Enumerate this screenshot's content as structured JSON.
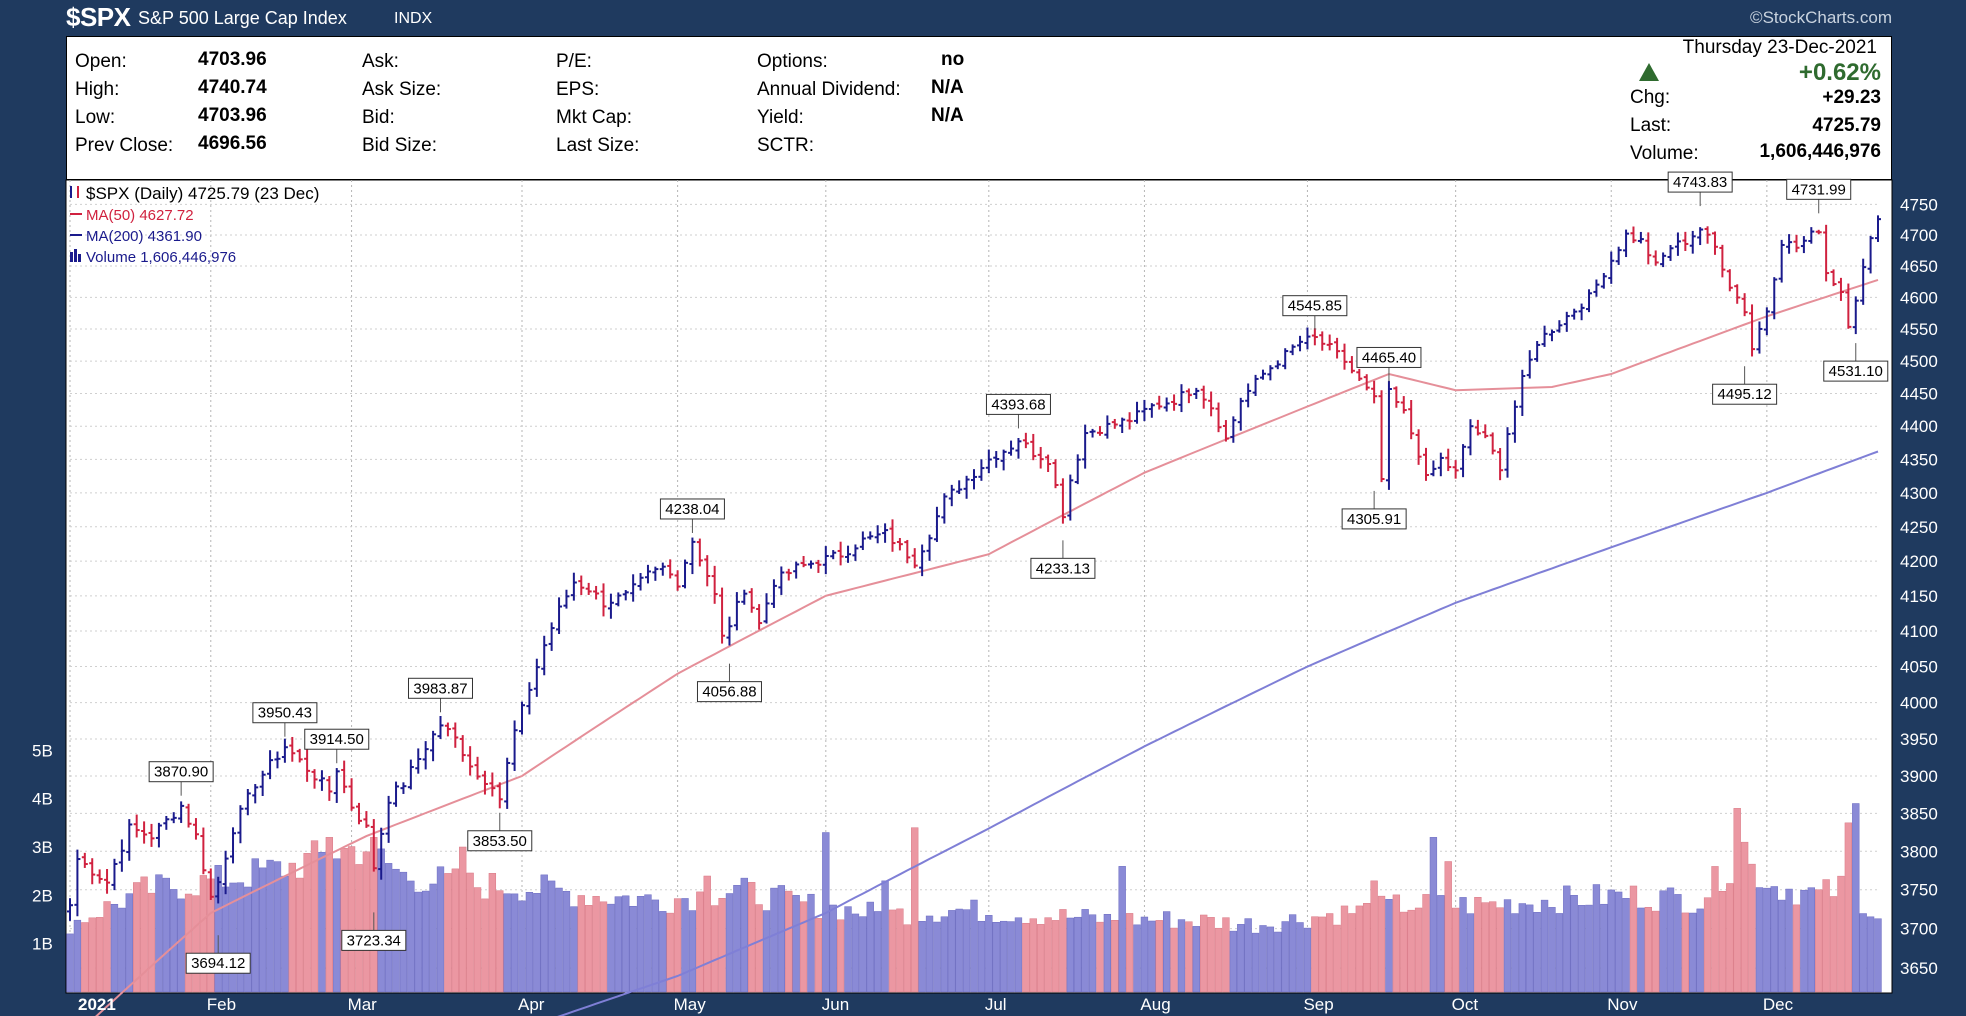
{
  "header": {
    "ticker": "$SPX",
    "name": "S&P 500 Large Cap Index",
    "type": "INDX",
    "copyright": "©StockCharts.com"
  },
  "quote": {
    "date": "Thursday  23-Dec-2021",
    "change_pct": "+0.62%",
    "open_label": "Open:",
    "open": "4703.96",
    "high_label": "High:",
    "high": "4740.74",
    "low_label": "Low:",
    "low": "4703.96",
    "prev_close_label": "Prev Close:",
    "prev_close": "4696.56",
    "ask_label": "Ask:",
    "ask_size_label": "Ask Size:",
    "bid_label": "Bid:",
    "bid_size_label": "Bid Size:",
    "pe_label": "P/E:",
    "eps_label": "EPS:",
    "mkt_cap_label": "Mkt Cap:",
    "last_size_label": "Last Size:",
    "options_label": "Options:",
    "options": "no",
    "annual_dividend_label": "Annual Dividend:",
    "annual_dividend": "N/A",
    "yield_label": "Yield:",
    "yield": "N/A",
    "sctr_label": "SCTR:",
    "chg_label": "Chg:",
    "chg": "+29.23",
    "last_label": "Last:",
    "last": "4725.79",
    "volume_label": "Volume:",
    "volume": "1,606,446,976"
  },
  "colors": {
    "up": "#1a1a8c",
    "down": "#d0213f",
    "ma50": "#e58f99",
    "ma200": "#7f7fd6",
    "vol_up": "#8a8ad6",
    "vol_down": "#eb97a2",
    "frame": "#1f3a5f",
    "arrow_up": "#2f6b2f"
  },
  "chart_data": {
    "type": "ohlc",
    "legend": {
      "main": "$SPX (Daily) 4725.79 (23 Dec)",
      "ma50": "MA(50) 4627.72",
      "ma200": "MA(200) 4361.90",
      "volume": "Volume 1,606,446,976"
    },
    "months": [
      "2021",
      "Feb",
      "Mar",
      "Apr",
      "May",
      "Jun",
      "Jul",
      "Aug",
      "Sep",
      "Oct",
      "Nov",
      "Dec"
    ],
    "x_month_starts": [
      0,
      19,
      38,
      61,
      82,
      102,
      124,
      145,
      167,
      187,
      208,
      229
    ],
    "price_ticks": [
      3650,
      3700,
      3750,
      3800,
      3850,
      3900,
      3950,
      4000,
      4050,
      4100,
      4150,
      4200,
      4250,
      4300,
      4350,
      4400,
      4450,
      4500,
      4550,
      4600,
      4650,
      4700,
      4750
    ],
    "price_axis": "log",
    "price_range": [
      3620,
      4790
    ],
    "volume_ticks": [
      "1B",
      "2B",
      "3B",
      "4B",
      "5B"
    ],
    "volume_range_billions": [
      0,
      6
    ],
    "annotations": [
      {
        "i": 15,
        "value": "3870.90",
        "pos": "above"
      },
      {
        "i": 20,
        "value": "3694.12",
        "pos": "below"
      },
      {
        "i": 29,
        "value": "3950.43",
        "pos": "above"
      },
      {
        "i": 36,
        "value": "3914.50",
        "pos": "above"
      },
      {
        "i": 41,
        "value": "3723.34",
        "pos": "below"
      },
      {
        "i": 50,
        "value": "3983.87",
        "pos": "above"
      },
      {
        "i": 58,
        "value": "3853.50",
        "pos": "below"
      },
      {
        "i": 84,
        "value": "4238.04",
        "pos": "above"
      },
      {
        "i": 89,
        "value": "4056.88",
        "pos": "below"
      },
      {
        "i": 128,
        "value": "4393.68",
        "pos": "above"
      },
      {
        "i": 134,
        "value": "4233.13",
        "pos": "below"
      },
      {
        "i": 168,
        "value": "4545.85",
        "pos": "above"
      },
      {
        "i": 178,
        "value": "4465.40",
        "pos": "above"
      },
      {
        "i": 176,
        "value": "4305.91",
        "pos": "below"
      },
      {
        "i": 220,
        "value": "4743.83",
        "pos": "above"
      },
      {
        "i": 226,
        "value": "4495.12",
        "pos": "below"
      },
      {
        "i": 236,
        "value": "4731.99",
        "pos": "above"
      },
      {
        "i": 241,
        "value": "4531.10",
        "pos": "below"
      }
    ],
    "close_anchors": [
      [
        0,
        3730
      ],
      [
        1,
        3790
      ],
      [
        5,
        3760
      ],
      [
        8,
        3830
      ],
      [
        11,
        3820
      ],
      [
        13,
        3840
      ],
      [
        15,
        3860
      ],
      [
        17,
        3820
      ],
      [
        19,
        3740
      ],
      [
        20,
        3760
      ],
      [
        22,
        3830
      ],
      [
        25,
        3890
      ],
      [
        29,
        3940
      ],
      [
        32,
        3910
      ],
      [
        35,
        3880
      ],
      [
        36,
        3910
      ],
      [
        38,
        3860
      ],
      [
        40,
        3830
      ],
      [
        41,
        3780
      ],
      [
        43,
        3870
      ],
      [
        45,
        3890
      ],
      [
        48,
        3940
      ],
      [
        50,
        3970
      ],
      [
        52,
        3950
      ],
      [
        55,
        3900
      ],
      [
        57,
        3890
      ],
      [
        58,
        3870
      ],
      [
        60,
        3960
      ],
      [
        62,
        4020
      ],
      [
        64,
        4080
      ],
      [
        66,
        4130
      ],
      [
        68,
        4170
      ],
      [
        70,
        4160
      ],
      [
        72,
        4140
      ],
      [
        75,
        4150
      ],
      [
        78,
        4180
      ],
      [
        80,
        4190
      ],
      [
        82,
        4170
      ],
      [
        84,
        4230
      ],
      [
        86,
        4180
      ],
      [
        87,
        4150
      ],
      [
        88,
        4090
      ],
      [
        89,
        4110
      ],
      [
        91,
        4160
      ],
      [
        93,
        4110
      ],
      [
        95,
        4170
      ],
      [
        98,
        4190
      ],
      [
        101,
        4200
      ],
      [
        104,
        4210
      ],
      [
        107,
        4230
      ],
      [
        110,
        4240
      ],
      [
        112,
        4220
      ],
      [
        114,
        4200
      ],
      [
        116,
        4240
      ],
      [
        118,
        4290
      ],
      [
        121,
        4320
      ],
      [
        124,
        4350
      ],
      [
        127,
        4370
      ],
      [
        128,
        4380
      ],
      [
        130,
        4360
      ],
      [
        132,
        4350
      ],
      [
        134,
        4270
      ],
      [
        135,
        4320
      ],
      [
        137,
        4390
      ],
      [
        140,
        4400
      ],
      [
        143,
        4410
      ],
      [
        146,
        4430
      ],
      [
        149,
        4440
      ],
      [
        152,
        4460
      ],
      [
        154,
        4430
      ],
      [
        156,
        4380
      ],
      [
        158,
        4440
      ],
      [
        161,
        4480
      ],
      [
        164,
        4510
      ],
      [
        166,
        4530
      ],
      [
        168,
        4535
      ],
      [
        170,
        4520
      ],
      [
        172,
        4500
      ],
      [
        174,
        4470
      ],
      [
        176,
        4440
      ],
      [
        177,
        4320
      ],
      [
        178,
        4450
      ],
      [
        180,
        4420
      ],
      [
        182,
        4360
      ],
      [
        183,
        4320
      ],
      [
        185,
        4350
      ],
      [
        187,
        4330
      ],
      [
        189,
        4400
      ],
      [
        191,
        4380
      ],
      [
        193,
        4340
      ],
      [
        194,
        4390
      ],
      [
        196,
        4470
      ],
      [
        198,
        4530
      ],
      [
        200,
        4550
      ],
      [
        202,
        4570
      ],
      [
        205,
        4600
      ],
      [
        207,
        4640
      ],
      [
        210,
        4700
      ],
      [
        212,
        4690
      ],
      [
        214,
        4650
      ],
      [
        216,
        4680
      ],
      [
        218,
        4690
      ],
      [
        220,
        4710
      ],
      [
        222,
        4680
      ],
      [
        224,
        4620
      ],
      [
        226,
        4580
      ],
      [
        227,
        4520
      ],
      [
        229,
        4580
      ],
      [
        231,
        4690
      ],
      [
        233,
        4680
      ],
      [
        235,
        4700
      ],
      [
        236,
        4710
      ],
      [
        237,
        4640
      ],
      [
        239,
        4610
      ],
      [
        240,
        4560
      ],
      [
        241,
        4600
      ],
      [
        243,
        4690
      ],
      [
        244,
        4725.79
      ]
    ],
    "volume_anchors_billions": [
      [
        0,
        1.4
      ],
      [
        10,
        2.1
      ],
      [
        20,
        2.3
      ],
      [
        30,
        2.6
      ],
      [
        36,
        2.9
      ],
      [
        40,
        3.0
      ],
      [
        45,
        2.4
      ],
      [
        55,
        2.2
      ],
      [
        60,
        2.2
      ],
      [
        70,
        2.0
      ],
      [
        80,
        1.9
      ],
      [
        90,
        2.1
      ],
      [
        100,
        1.8
      ],
      [
        110,
        1.6
      ],
      [
        120,
        1.7
      ],
      [
        130,
        1.6
      ],
      [
        140,
        1.5
      ],
      [
        150,
        1.5
      ],
      [
        160,
        1.4
      ],
      [
        170,
        1.6
      ],
      [
        180,
        1.8
      ],
      [
        190,
        1.8
      ],
      [
        200,
        1.9
      ],
      [
        210,
        2.0
      ],
      [
        220,
        1.9
      ],
      [
        225,
        2.8
      ],
      [
        230,
        2.2
      ],
      [
        236,
        2.0
      ],
      [
        240,
        2.2
      ],
      [
        244,
        1.6
      ]
    ],
    "volume_spikes_billions": [
      [
        35,
        3.2
      ],
      [
        41,
        3.2
      ],
      [
        53,
        3.0
      ],
      [
        86,
        2.4
      ],
      [
        102,
        3.3
      ],
      [
        110,
        2.3
      ],
      [
        114,
        3.4
      ],
      [
        142,
        2.6
      ],
      [
        176,
        2.3
      ],
      [
        184,
        3.2
      ],
      [
        186,
        2.7
      ],
      [
        225,
        3.8
      ],
      [
        226,
        3.1
      ],
      [
        240,
        3.5
      ],
      [
        241,
        3.9
      ]
    ],
    "ma50_anchors": [
      [
        0,
        3560
      ],
      [
        19,
        3720
      ],
      [
        40,
        3820
      ],
      [
        61,
        3900
      ],
      [
        82,
        4040
      ],
      [
        102,
        4150
      ],
      [
        124,
        4210
      ],
      [
        145,
        4330
      ],
      [
        167,
        4430
      ],
      [
        178,
        4480
      ],
      [
        187,
        4455
      ],
      [
        200,
        4460
      ],
      [
        208,
        4480
      ],
      [
        229,
        4570
      ],
      [
        244,
        4627.72
      ]
    ],
    "ma200_anchors": [
      [
        55,
        3555
      ],
      [
        82,
        3640
      ],
      [
        102,
        3720
      ],
      [
        124,
        3830
      ],
      [
        145,
        3940
      ],
      [
        167,
        4050
      ],
      [
        187,
        4140
      ],
      [
        208,
        4220
      ],
      [
        229,
        4300
      ],
      [
        244,
        4361.9
      ]
    ]
  }
}
